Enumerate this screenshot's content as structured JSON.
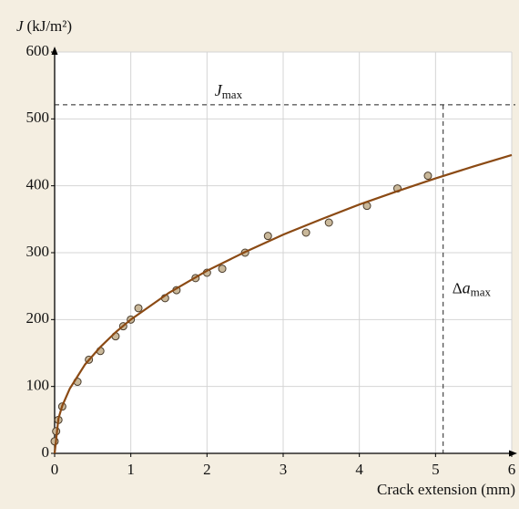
{
  "chart_data": {
    "type": "scatter",
    "y_label": {
      "symbol": "J",
      "unit": "(kJ/m²)"
    },
    "x_label": "Crack extension (mm)",
    "xlim": [
      0,
      6
    ],
    "ylim": [
      0,
      600
    ],
    "xticks": [
      0,
      1,
      2,
      3,
      4,
      5,
      6
    ],
    "yticks": [
      0,
      100,
      200,
      300,
      400,
      500,
      600
    ],
    "grid": true,
    "series": [
      {
        "type": "scatter",
        "color": "#c9b89a",
        "x": [
          0.0,
          0.02,
          0.05,
          0.1,
          0.3,
          0.45,
          0.6,
          0.8,
          0.9,
          1.0,
          1.1,
          1.45,
          1.6,
          1.85,
          2.0,
          2.2,
          2.5,
          2.8,
          3.3,
          3.6,
          4.1,
          4.5,
          4.9
        ],
        "values": [
          18,
          33,
          50,
          70,
          107,
          140,
          153,
          175,
          190,
          200,
          217,
          232,
          244,
          262,
          270,
          276,
          300,
          325,
          330,
          345,
          370,
          396,
          415
        ]
      },
      {
        "type": "line",
        "color": "#8b4a14",
        "x": [
          0,
          0.05,
          0.1,
          0.2,
          0.4,
          0.6,
          0.8,
          1,
          1.5,
          2,
          2.5,
          3,
          3.5,
          4,
          4.5,
          5,
          5.5,
          6
        ],
        "values": [
          0,
          52,
          71,
          97,
          133,
          159,
          181,
          200,
          240,
          273,
          301,
          327,
          350,
          372,
          392,
          411,
          429,
          446
        ]
      }
    ],
    "reference_lines": [
      {
        "axis": "y",
        "value": 521,
        "label": {
          "symbol": "J",
          "subscript": "max"
        }
      },
      {
        "axis": "x",
        "value": 5.1,
        "label": {
          "prefix": "Δ",
          "symbol": "a",
          "subscript": "max"
        }
      }
    ]
  }
}
